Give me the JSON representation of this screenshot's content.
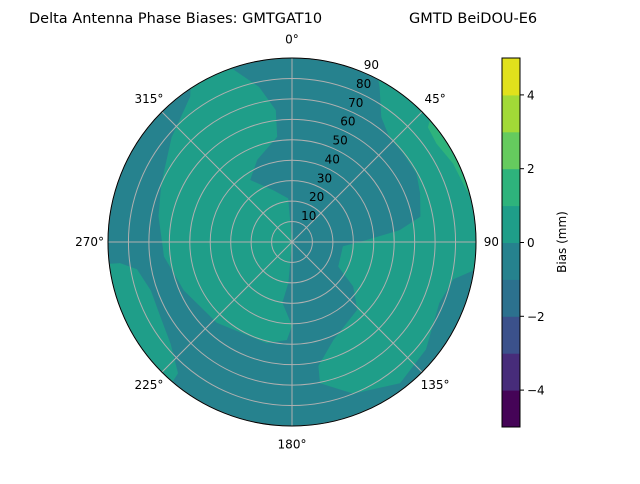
{
  "chart_data": {
    "type": "polar-contour",
    "title_left": "Delta Antenna Phase Biases: GMTGAT10",
    "title_right": "GMTD BeiDOU-E6",
    "angular_ticks": [
      "0°",
      "45°",
      "90°",
      "135°",
      "180°",
      "225°",
      "270°",
      "315°"
    ],
    "angular_tick_values": [
      0,
      45,
      90,
      135,
      180,
      225,
      270,
      315
    ],
    "radial_ticks": [
      "10",
      "20",
      "30",
      "40",
      "50",
      "60",
      "70",
      "80",
      "90"
    ],
    "radial_tick_values": [
      10,
      20,
      30,
      40,
      50,
      60,
      70,
      80,
      90
    ],
    "radial_range": [
      0,
      90
    ],
    "angular_direction": "clockwise, 0° at top",
    "grid": true,
    "background_level": [
      -1,
      0
    ],
    "regions": [
      {
        "level": [
          0,
          1
        ],
        "points": [
          [
            341,
            89.6
          ],
          [
            348,
            77.5
          ],
          [
            353,
            65
          ],
          [
            352,
            52
          ],
          [
            337,
            43.6
          ],
          [
            326,
            36.6
          ],
          [
            340,
            27
          ],
          [
            355,
            21.4
          ],
          [
            0,
            0
          ],
          [
            185,
            20
          ],
          [
            189,
            30
          ],
          [
            180,
            41
          ],
          [
            183,
            48
          ],
          [
            194,
            51
          ],
          [
            223,
            54
          ],
          [
            246,
            58
          ],
          [
            263.5,
            63
          ],
          [
            281,
            66.5
          ],
          [
            294,
            70
          ],
          [
            311,
            78
          ],
          [
            325,
            86.8
          ],
          [
            329,
            90
          ]
        ]
      },
      {
        "level": [
          0,
          1
        ],
        "points": [
          [
            25.2,
            90
          ],
          [
            29.5,
            87
          ],
          [
            35.6,
            75
          ],
          [
            42.9,
            70
          ],
          [
            51.5,
            69.5
          ],
          [
            61.2,
            69.5
          ],
          [
            69.2,
            67
          ],
          [
            78.8,
            64
          ],
          [
            83.7,
            53
          ],
          [
            88.5,
            36.5
          ],
          [
            94.8,
            25
          ],
          [
            118,
            25.6
          ],
          [
            126,
            37
          ],
          [
            136,
            46
          ],
          [
            157,
            52
          ],
          [
            168,
            62
          ],
          [
            168.8,
            70.4
          ],
          [
            158,
            80
          ],
          [
            142.6,
            87
          ],
          [
            128.7,
            84
          ],
          [
            112.5,
            78
          ],
          [
            103,
            81
          ],
          [
            96.6,
            90
          ],
          [
            60,
            90
          ]
        ]
      },
      {
        "level": [
          1,
          2
        ],
        "points": [
          [
            46.3,
            90
          ],
          [
            49.8,
            87
          ],
          [
            55.7,
            85.5
          ],
          [
            64,
            87.6
          ],
          [
            73.4,
            89
          ],
          [
            84,
            90
          ],
          [
            65,
            90
          ]
        ]
      },
      {
        "level": [
          0,
          1
        ],
        "points": [
          [
            263.4,
            90
          ],
          [
            263,
            84.7
          ],
          [
            260,
            77
          ],
          [
            251,
            73
          ],
          [
            240.5,
            74
          ],
          [
            230,
            77.5
          ],
          [
            221,
            85
          ],
          [
            220,
            90
          ],
          [
            242,
            90
          ]
        ]
      }
    ],
    "colorbar": {
      "label": "Bias (mm)",
      "range": [
        -5,
        5
      ],
      "levels": [
        -5,
        -4,
        -3,
        -2,
        -1,
        0,
        1,
        2,
        3,
        4,
        5
      ],
      "colors": [
        "#450457",
        "#472c7a",
        "#3b518b",
        "#2c718e",
        "#26828e",
        "#1f9e89",
        "#2eb37c",
        "#65cb5e",
        "#a2da37",
        "#e1e11c"
      ],
      "ticks": [
        "4",
        "2",
        "0",
        "−2",
        "−4"
      ],
      "tick_values": [
        4,
        2,
        0,
        -2,
        -4
      ]
    },
    "colors": {
      "grid": "#b0b0b0",
      "frame": "#000000"
    }
  }
}
